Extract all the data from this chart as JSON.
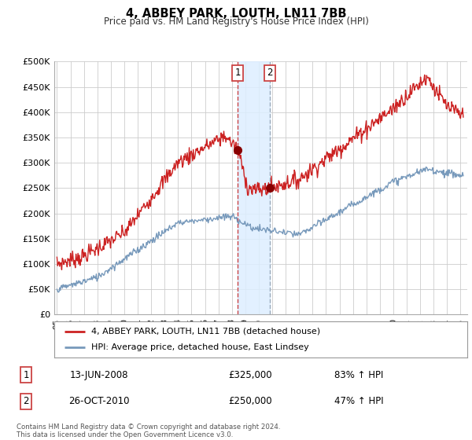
{
  "title": "4, ABBEY PARK, LOUTH, LN11 7BB",
  "subtitle": "Price paid vs. HM Land Registry's House Price Index (HPI)",
  "ylim": [
    0,
    500000
  ],
  "yticks": [
    0,
    50000,
    100000,
    150000,
    200000,
    250000,
    300000,
    350000,
    400000,
    450000,
    500000
  ],
  "ytick_labels": [
    "£0",
    "£50K",
    "£100K",
    "£150K",
    "£200K",
    "£250K",
    "£300K",
    "£350K",
    "£400K",
    "£450K",
    "£500K"
  ],
  "xlim_start": 1994.8,
  "xlim_end": 2025.5,
  "red_line_color": "#cc2222",
  "blue_line_color": "#7799bb",
  "sale1_x": 2008.45,
  "sale1_y": 325000,
  "sale2_x": 2010.82,
  "sale2_y": 250000,
  "vline1_x": 2008.45,
  "vline2_x": 2010.82,
  "legend_entry1": "4, ABBEY PARK, LOUTH, LN11 7BB (detached house)",
  "legend_entry2": "HPI: Average price, detached house, East Lindsey",
  "table_row1_num": "1",
  "table_row1_date": "13-JUN-2008",
  "table_row1_price": "£325,000",
  "table_row1_hpi": "83% ↑ HPI",
  "table_row2_num": "2",
  "table_row2_date": "26-OCT-2010",
  "table_row2_price": "£250,000",
  "table_row2_hpi": "47% ↑ HPI",
  "footnote": "Contains HM Land Registry data © Crown copyright and database right 2024.\nThis data is licensed under the Open Government Licence v3.0.",
  "background_color": "#ffffff",
  "grid_color": "#cccccc",
  "vline_color_red": "#cc4444",
  "vline_color_blue": "#99aabb",
  "shade_color": "#ddeeff",
  "marker_color": "#880000",
  "xtick_labels": [
    "95",
    "96",
    "97",
    "98",
    "99",
    "00",
    "01",
    "02",
    "03",
    "04",
    "05",
    "06",
    "07",
    "08",
    "09",
    "10",
    "11",
    "12",
    "13",
    "14",
    "15",
    "16",
    "17",
    "18",
    "19",
    "20",
    "21",
    "22",
    "23",
    "24",
    "25"
  ],
  "xtick_years": [
    1995,
    1996,
    1997,
    1998,
    1999,
    2000,
    2001,
    2002,
    2003,
    2004,
    2005,
    2006,
    2007,
    2008,
    2009,
    2010,
    2011,
    2012,
    2013,
    2014,
    2015,
    2016,
    2017,
    2018,
    2019,
    2020,
    2021,
    2022,
    2023,
    2024,
    2025
  ]
}
